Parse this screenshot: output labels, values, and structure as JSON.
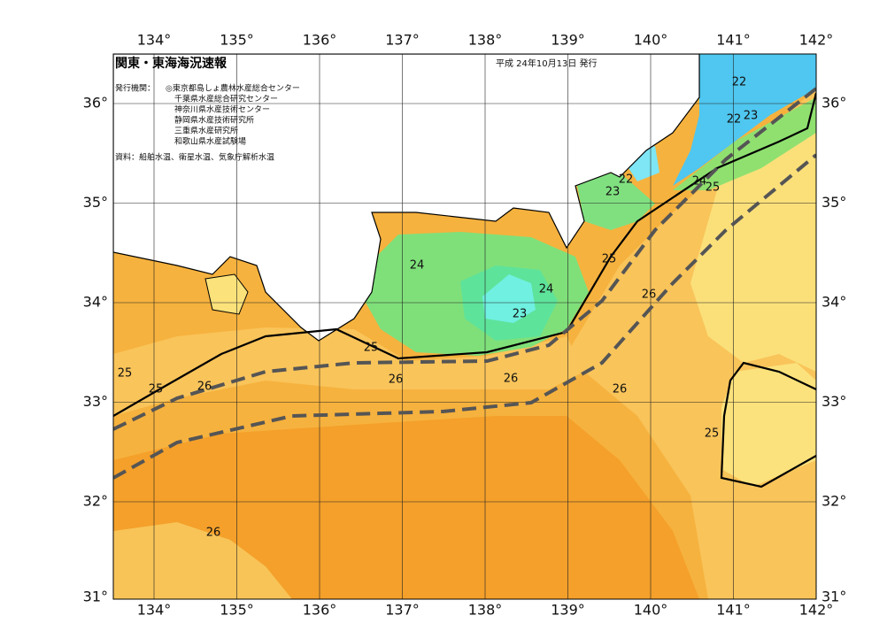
{
  "header": {
    "title": "関東・東海海況速報",
    "date": "平成 24年10月13日 発行",
    "issuer_label": "発行機関：",
    "issuers": [
      "◎東京都島しょ農林水産総合センター",
      "千葉県水産総合研究センター",
      "神奈川県水産技術センター",
      "静岡県水産技術研究所",
      "三重県水産研究所",
      "和歌山県水産試験場"
    ],
    "source": "資料：船舶水温、衛星水温、気象庁解析水温"
  },
  "axes": {
    "longitude": [
      "134°",
      "135°",
      "136°",
      "137°",
      "138°",
      "139°",
      "140°",
      "141°",
      "142°"
    ],
    "latitude": [
      "36°",
      "35°",
      "34°",
      "33°",
      "32°",
      "31°"
    ]
  },
  "contour_labels": [
    "22",
    "22",
    "23",
    "22",
    "23",
    "24",
    "25",
    "24",
    "25",
    "24",
    "26",
    "23",
    "25",
    "25",
    "25",
    "26",
    "26",
    "26",
    "26",
    "25",
    "26"
  ]
}
